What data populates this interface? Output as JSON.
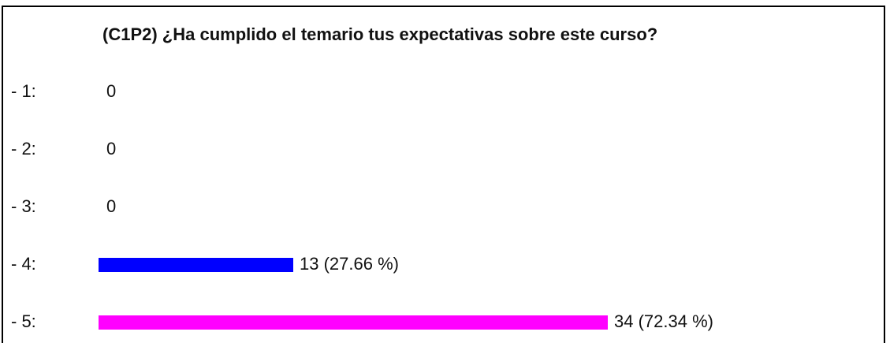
{
  "chart_data": {
    "type": "bar",
    "orientation": "horizontal",
    "title": "(C1P2) ¿Ha cumplido el temario tus expectativas sobre este curso?",
    "categories": [
      "- 1:",
      "- 2:",
      "- 3:",
      "- 4:",
      "- 5:"
    ],
    "values": [
      0,
      0,
      0,
      13,
      34
    ],
    "value_labels": [
      "0",
      "0",
      "0",
      "13 (27.66 %)",
      "34 (72.34 %)"
    ],
    "colors": [
      null,
      null,
      null,
      "#0000ff",
      "#ff00ff"
    ]
  }
}
